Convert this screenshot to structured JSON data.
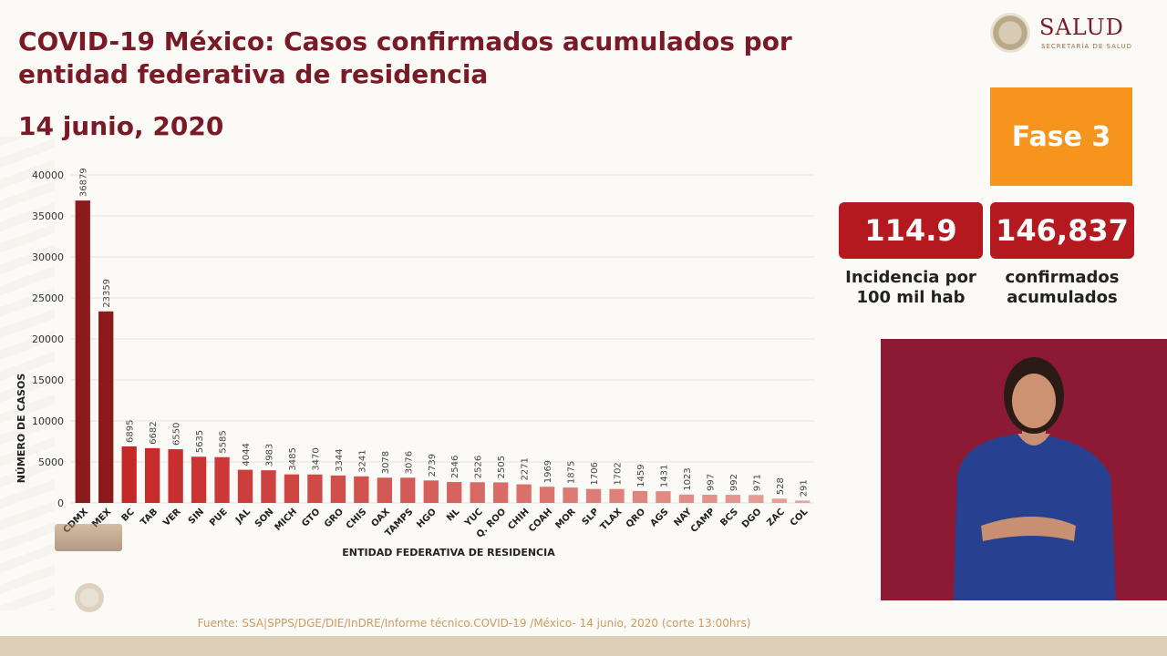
{
  "header": {
    "title": "COVID-19 México: Casos confirmados acumulados por entidad federativa de residencia",
    "date": "14 junio, 2020"
  },
  "logo": {
    "name": "SALUD",
    "subtitle": "SECRETARÍA DE SALUD"
  },
  "phase": {
    "label": "Fase 3",
    "color": "#f7941d"
  },
  "stats": {
    "incidence": {
      "value": "114.9",
      "label_line1": "Incidencia por",
      "label_line2": "100 mil hab"
    },
    "confirmed": {
      "value": "146,837",
      "label_line1": "confirmados",
      "label_line2": "acumulados"
    }
  },
  "footer": {
    "source": "Fuente: SSA|SPPS/DGE/DIE/InDRE/Informe técnico.COVID-19 /México- 14 junio, 2020 (corte 13:00hrs)"
  },
  "chart_data": {
    "type": "bar",
    "title": "",
    "xlabel": "ENTIDAD FEDERATIVA DE RESIDENCIA",
    "ylabel": "NÚMERO DE CASOS",
    "ylim": [
      0,
      40000
    ],
    "yticks": [
      0,
      5000,
      10000,
      15000,
      20000,
      25000,
      30000,
      35000,
      40000
    ],
    "grid": true,
    "categories": [
      "CDMX",
      "MEX",
      "BC",
      "TAB",
      "VER",
      "SIN",
      "PUE",
      "JAL",
      "SON",
      "MICH",
      "GTO",
      "GRO",
      "CHIS",
      "OAX",
      "TAMPS",
      "HGO",
      "NL",
      "YUC",
      "Q. ROO",
      "CHIH",
      "COAH",
      "MOR",
      "SLP",
      "TLAX",
      "QRO",
      "AGS",
      "NAY",
      "CAMP",
      "BCS",
      "DGO",
      "ZAC",
      "COL"
    ],
    "values": [
      36879,
      23359,
      6895,
      6682,
      6550,
      5635,
      5585,
      4044,
      3983,
      3485,
      3470,
      3344,
      3241,
      3078,
      3076,
      2739,
      2546,
      2526,
      2505,
      2271,
      1969,
      1875,
      1706,
      1702,
      1459,
      1431,
      1023,
      997,
      992,
      971,
      528,
      291
    ],
    "colors": {
      "dark": "#8b1a1a",
      "mid": "#c62828",
      "light": "#e8a39a"
    }
  }
}
